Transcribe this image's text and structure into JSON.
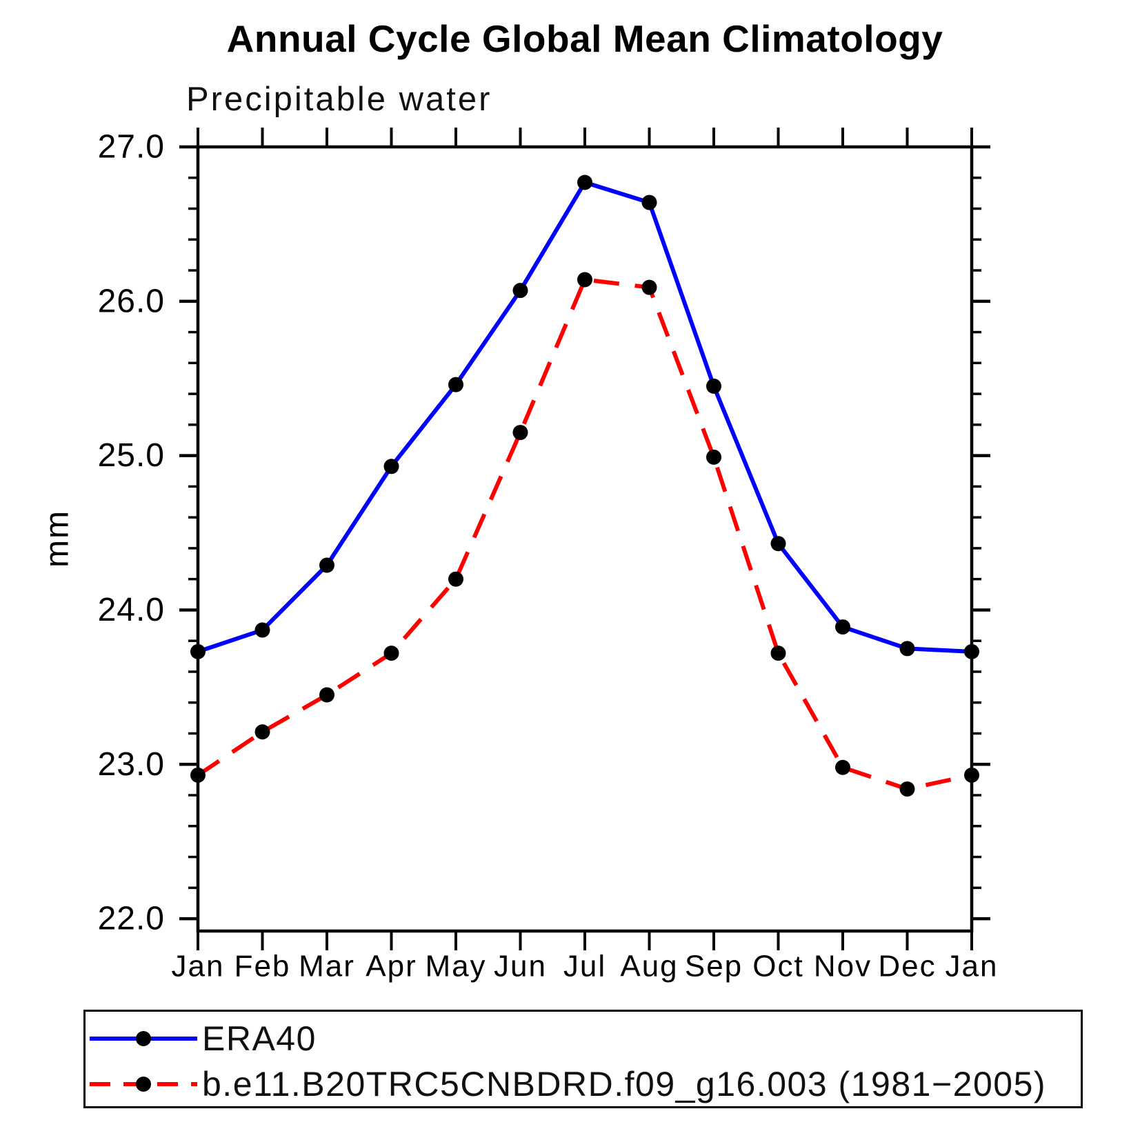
{
  "page": {
    "background": "#ffffff"
  },
  "chart_data": {
    "type": "line",
    "title": "Annual Cycle Global Mean Climatology",
    "subtitle": "Precipitable water",
    "ylabel": "mm",
    "categories": [
      "Jan",
      "Feb",
      "Mar",
      "Apr",
      "May",
      "Jun",
      "Jul",
      "Aug",
      "Sep",
      "Oct",
      "Nov",
      "Dec",
      "Jan"
    ],
    "ylim": [
      21.92,
      27.0
    ],
    "ytick_major": [
      22.0,
      23.0,
      24.0,
      25.0,
      26.0,
      27.0
    ],
    "ytick_labels": [
      "22.0",
      "23.0",
      "24.0",
      "25.0",
      "26.0",
      "27.0"
    ],
    "ytick_minor_step": 0.2,
    "grid": false,
    "axis_color": "#000000",
    "legend_position": "bottom-left-box",
    "marker": "filled-circle",
    "marker_color": "#000000",
    "series": [
      {
        "name": "ERA40",
        "color": "#0000ff",
        "line_style": "solid",
        "values": [
          23.73,
          23.87,
          24.29,
          24.93,
          25.46,
          26.07,
          26.77,
          26.64,
          25.45,
          24.43,
          23.89,
          23.75,
          23.73
        ]
      },
      {
        "name": "b.e11.B20TRC5CNBDRD.f09_g16.003 (1981−2005)",
        "color": "#ff0000",
        "line_style": "dashed",
        "values": [
          22.93,
          23.21,
          23.45,
          23.72,
          24.2,
          25.15,
          26.14,
          26.09,
          24.99,
          23.72,
          22.98,
          22.84,
          22.93
        ]
      }
    ]
  }
}
